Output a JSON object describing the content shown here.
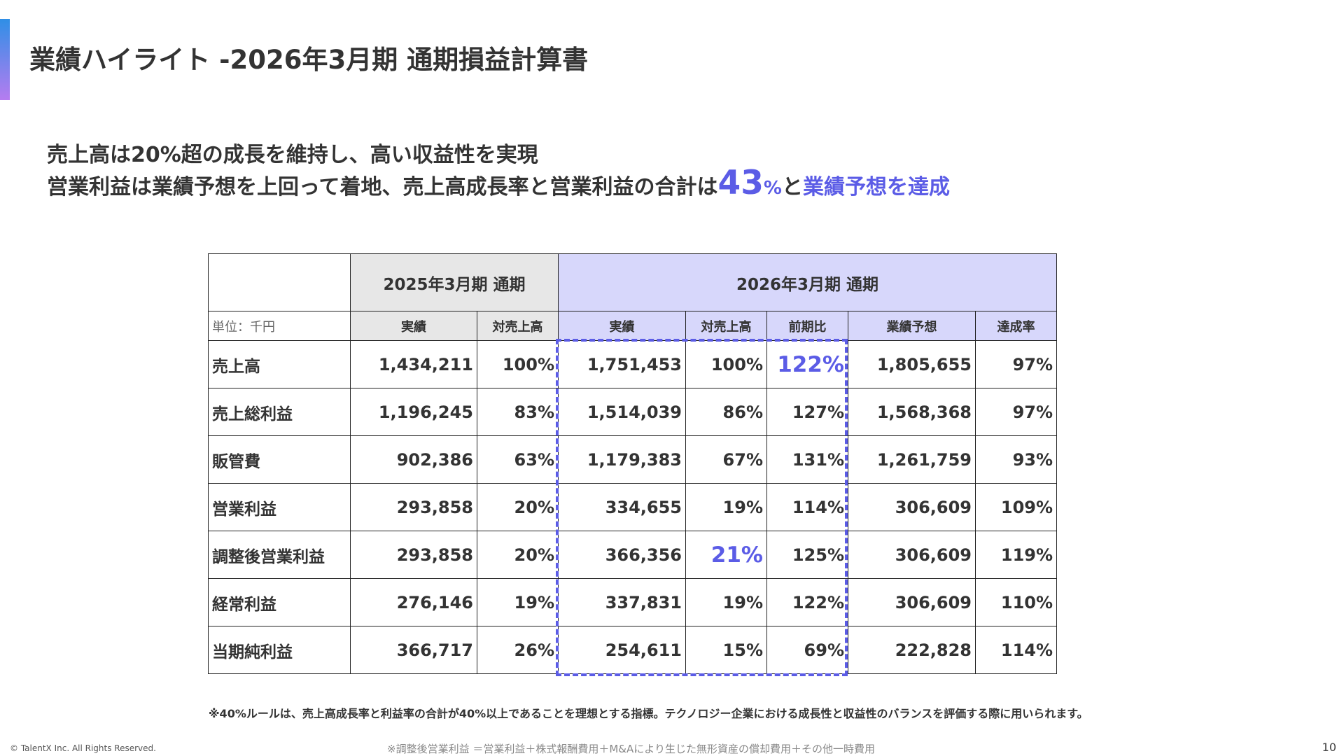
{
  "slide": {
    "title": "業績ハイライト -2026年3月期 通期損益計算書",
    "accent_color": "#5b5ce6",
    "page_number": "10",
    "copyright": "© TalentX Inc. All Rights Reserved."
  },
  "headline": {
    "line1": "売上高は20%超の成長を維持し、高い収益性を実現",
    "line2_prefix": "営業利益は業績予想を上回って着地、売上高成長率と営業利益の合計は",
    "line2_number": "43",
    "line2_percent": "%",
    "line2_connector": "と",
    "line2_suffix": "業績予想を達成"
  },
  "table": {
    "group_headers": {
      "prev": "2025年3月期 通期",
      "cur": "2026年3月期 通期"
    },
    "unit": "単位：千円",
    "columns": [
      "実績",
      "対売上高",
      "実績",
      "対売上高",
      "前期比",
      "業績予想",
      "達成率"
    ],
    "rows": [
      {
        "label": "売上高",
        "values": [
          "1,434,211",
          "100%",
          "1,751,453",
          "100%",
          "122%",
          "1,805,655",
          "97%"
        ]
      },
      {
        "label": "売上総利益",
        "values": [
          "1,196,245",
          "83%",
          "1,514,039",
          "86%",
          "127%",
          "1,568,368",
          "97%"
        ]
      },
      {
        "label": "販管費",
        "values": [
          "902,386",
          "63%",
          "1,179,383",
          "67%",
          "131%",
          "1,261,759",
          "93%"
        ]
      },
      {
        "label": "営業利益",
        "values": [
          "293,858",
          "20%",
          "334,655",
          "19%",
          "114%",
          "306,609",
          "109%"
        ]
      },
      {
        "label": "調整後営業利益",
        "values": [
          "293,858",
          "20%",
          "366,356",
          "21%",
          "125%",
          "306,609",
          "119%"
        ]
      },
      {
        "label": "経常利益",
        "values": [
          "276,146",
          "19%",
          "337,831",
          "19%",
          "122%",
          "306,609",
          "110%"
        ]
      },
      {
        "label": "当期純利益",
        "values": [
          "366,717",
          "26%",
          "254,611",
          "15%",
          "69%",
          "222,828",
          "114%"
        ]
      }
    ],
    "header_colors": {
      "prev": "#e7e7e7",
      "cur": "#d7d7fb"
    }
  },
  "notes": {
    "rule_40": "※40%ルールは、売上高成長率と利益率の合計が40%以上であることを理想とする指標。テクノロジー企業における成長性と収益性のバランスを評価する際に用いられます。",
    "adjusted_op": "※調整後営業利益 ＝営業利益＋株式報酬費用＋M&Aにより生じた無形資産の償却費用＋その他一時費用"
  }
}
